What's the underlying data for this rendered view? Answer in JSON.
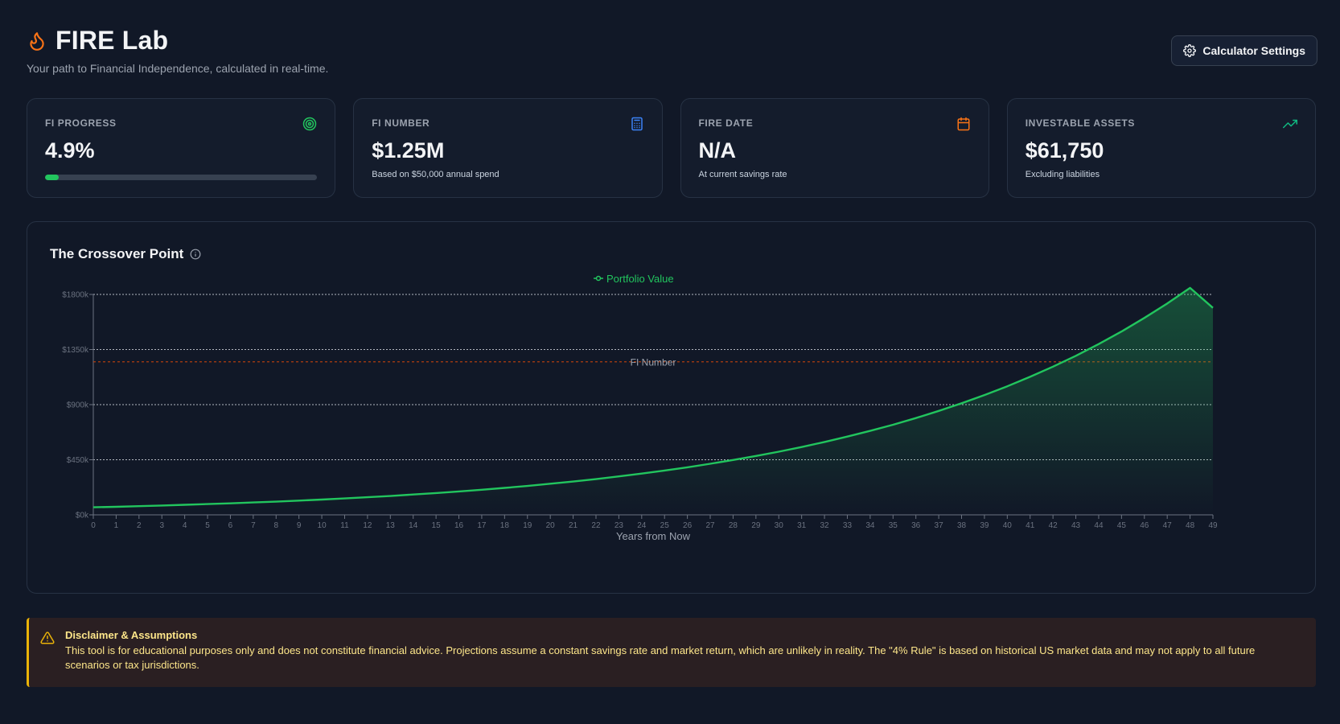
{
  "header": {
    "title": "FIRE Lab",
    "tagline": "Your path to Financial Independence, calculated in real-time.",
    "settings_label": "Calculator Settings"
  },
  "cards": [
    {
      "label": "FI PROGRESS",
      "value": "4.9%",
      "progress": 0.049,
      "icon": "target-icon",
      "icon_color": "#22c55e"
    },
    {
      "label": "FI NUMBER",
      "value": "$1.25M",
      "sub": "Based on $50,000 annual spend",
      "icon": "calculator-icon",
      "icon_color": "#3b82f6"
    },
    {
      "label": "FIRE DATE",
      "value": "N/A",
      "sub": "At current savings rate",
      "icon": "calendar-icon",
      "icon_color": "#f97316"
    },
    {
      "label": "INVESTABLE ASSETS",
      "value": "$61,750",
      "sub": "Excluding liabilities",
      "icon": "trending-up-icon",
      "icon_color": "#10b981"
    }
  ],
  "chart_panel": {
    "title": "The Crossover Point"
  },
  "chart_data": {
    "type": "area",
    "xlabel": "Years from Now",
    "ylabel": "",
    "x": [
      0,
      1,
      2,
      3,
      4,
      5,
      6,
      7,
      8,
      9,
      10,
      11,
      12,
      13,
      14,
      15,
      16,
      17,
      18,
      19,
      20,
      21,
      22,
      23,
      24,
      25,
      26,
      27,
      28,
      29,
      30,
      31,
      32,
      33,
      34,
      35,
      36,
      37,
      38,
      39,
      40,
      41,
      42,
      43,
      44,
      45,
      46,
      47,
      48,
      49
    ],
    "ylim": [
      0,
      1800
    ],
    "y_ticks": [
      "$0k",
      "$450k",
      "$900k",
      "$1350k",
      "$1800k"
    ],
    "y_tick_values": [
      0,
      450,
      900,
      1350,
      1800
    ],
    "grid": true,
    "legend": "top-center",
    "reference_lines": [
      {
        "label": "FI Number",
        "value": 1250,
        "color": "#c2410c"
      }
    ],
    "series": [
      {
        "name": "Portfolio Value",
        "color": "#22c55e",
        "values": [
          62,
          66,
          71,
          76,
          82,
          88,
          94,
          101,
          108,
          116,
          125,
          134,
          144,
          154,
          166,
          178,
          191,
          205,
          220,
          236,
          254,
          272,
          292,
          314,
          337,
          362,
          388,
          417,
          448,
          481,
          516,
          554,
          595,
          639,
          686,
          736,
          790,
          849,
          911,
          978,
          1050,
          1127,
          1210,
          1299,
          1395,
          1497,
          1608,
          1726,
          1853,
          1690
        ]
      }
    ]
  },
  "disclaimer": {
    "title": "Disclaimer & Assumptions",
    "text": "This tool is for educational purposes only and does not constitute financial advice. Projections assume a constant savings rate and market return, which are unlikely in reality. The \"4% Rule\" is based on historical US market data and may not apply to all future scenarios or tax jurisdictions."
  }
}
